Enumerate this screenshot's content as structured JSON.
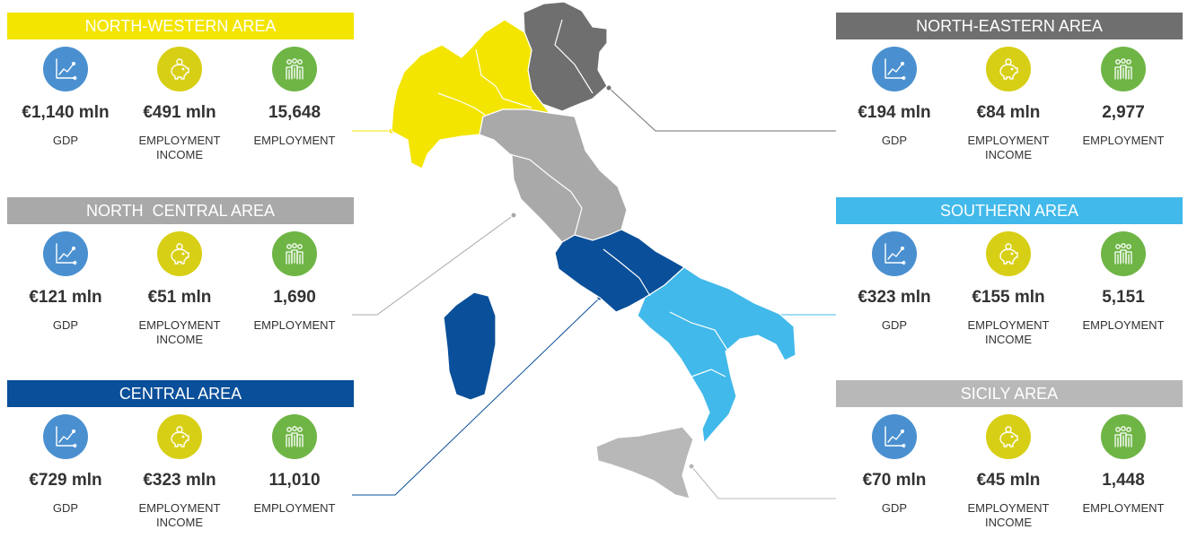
{
  "colors": {
    "gdp_circle": "#4a90d0",
    "income_circle": "#d7cf15",
    "employment_circle": "#6fb546",
    "north_western": "#f3e500",
    "north_eastern": "#6f6f6f",
    "north_central": "#a9a9a9",
    "central": "#0a4f99",
    "southern": "#41b9ea",
    "sicily": "#b8b8b8"
  },
  "icons": {
    "gdp": "trend-chart-icon",
    "income": "piggy-bank-icon",
    "employment": "people-group-icon"
  },
  "areas": [
    {
      "key": "nw",
      "title": "NORTH-WESTERN AREA",
      "gdp": "€1,140 mln",
      "income": "€491 mln",
      "employment": "15,648",
      "gdp_label": "GDP",
      "income_label": "EMPLOYMENT INCOME",
      "employment_label": "EMPLOYMENT"
    },
    {
      "key": "nc",
      "title": "NORTH  CENTRAL AREA",
      "gdp": "€121 mln",
      "income": "€51 mln",
      "employment": "1,690",
      "gdp_label": "GDP",
      "income_label": "EMPLOYMENT INCOME",
      "employment_label": "EMPLOYMENT"
    },
    {
      "key": "c",
      "title": "CENTRAL AREA",
      "gdp": "€729 mln",
      "income": "€323 mln",
      "employment": "11,010",
      "gdp_label": "GDP",
      "income_label": "EMPLOYMENT INCOME",
      "employment_label": "EMPLOYMENT"
    },
    {
      "key": "ne",
      "title": "NORTH-EASTERN AREA",
      "gdp": "€194 mln",
      "income": "€84 mln",
      "employment": "2,977",
      "gdp_label": "GDP",
      "income_label": "EMPLOYMENT INCOME",
      "employment_label": "EMPLOYMENT"
    },
    {
      "key": "s",
      "title": "SOUTHERN AREA",
      "gdp": "€323 mln",
      "income": "€155 mln",
      "employment": "5,151",
      "gdp_label": "GDP",
      "income_label": "EMPLOYMENT INCOME",
      "employment_label": "EMPLOYMENT"
    },
    {
      "key": "si",
      "title": "SICILY AREA",
      "gdp": "€70 mln",
      "income": "€45 mln",
      "employment": "1,448",
      "gdp_label": "GDP",
      "income_label": "EMPLOYMENT INCOME",
      "employment_label": "EMPLOYMENT"
    }
  ]
}
